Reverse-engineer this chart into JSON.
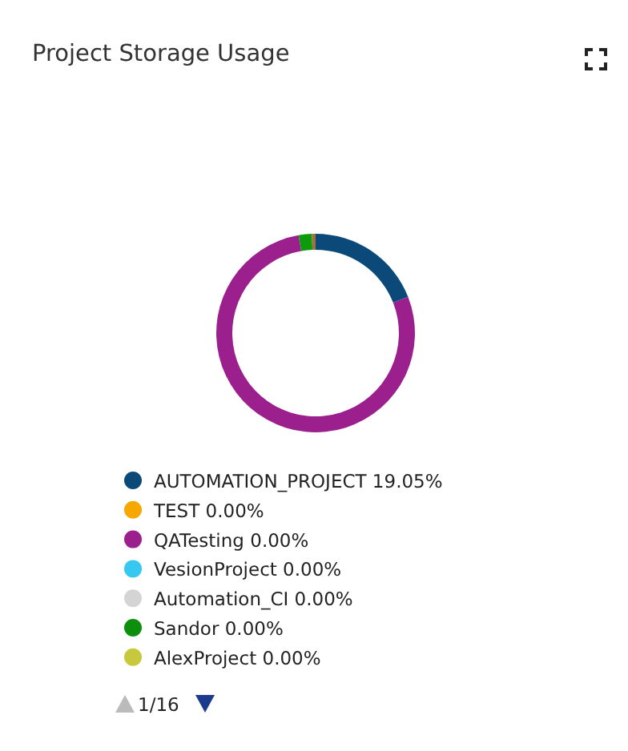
{
  "chart_data": {
    "type": "donut",
    "title": "Project Storage Usage",
    "categories": [
      "AUTOMATION_PROJECT",
      "TEST",
      "QATesting",
      "VesionProject",
      "Automation_CI",
      "Sandor",
      "AlexProject",
      null,
      null,
      null
    ],
    "values": [
      19.05,
      0,
      0,
      0,
      0,
      0,
      0,
      78.2,
      2.15,
      0.6
    ],
    "value_labels": [
      "19.05%",
      "0.00%",
      "0.00%",
      "0.00%",
      "0.00%",
      "0.00%",
      "0.00%",
      null,
      null,
      null
    ],
    "colors": [
      "#0b4a78",
      "#f7a800",
      "#9b1f8c",
      "#36c8f0",
      "#d4d4d4",
      "#0d8f0d",
      "#c8c83c",
      "#9b1f8c",
      "#0d9a0d",
      "#a07040"
    ],
    "legend": "bottom",
    "annotations": [
      "1/16"
    ]
  }
}
